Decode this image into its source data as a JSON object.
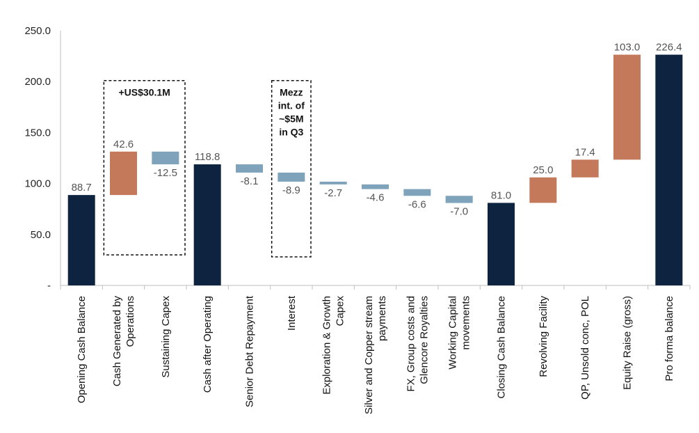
{
  "chart_data": {
    "type": "bar",
    "subtype": "waterfall",
    "title": "",
    "xlabel": "",
    "ylabel": "",
    "ylim": [
      0,
      250
    ],
    "yticks": [
      0,
      50,
      100,
      150,
      200,
      250
    ],
    "ytick_labels": [
      "-",
      "50.0",
      "100.0",
      "150.0",
      "200.0",
      "250.0"
    ],
    "grid": false,
    "legend": "none",
    "categories": [
      "Opening Cash Balance",
      "Cash Generated by Operations",
      "Sustaining Capex",
      "Cash after Operating",
      "Senior Debt Repayment",
      "Interest",
      "Exploration & Growth Capex",
      "Silver and Copper stream payments",
      "FX, Group costs and Glencore Royalties",
      "Working Capital movements",
      "Closing Cash Balance",
      "Revolving Facility",
      "QP, Unsold conc, POL",
      "Equity Raise (gross)",
      "Pro forma balance"
    ],
    "bars": [
      {
        "kind": "total",
        "value": 88.7,
        "label": "88.7",
        "base": 0,
        "top": 88.7
      },
      {
        "kind": "increase",
        "value": 42.6,
        "label": "42.6",
        "base": 88.7,
        "top": 131.3
      },
      {
        "kind": "decrease",
        "value": -12.5,
        "label": "-12.5",
        "base": 118.8,
        "top": 131.3
      },
      {
        "kind": "total",
        "value": 118.8,
        "label": "118.8",
        "base": 0,
        "top": 118.8
      },
      {
        "kind": "decrease",
        "value": -8.1,
        "label": "-8.1",
        "base": 110.7,
        "top": 118.8
      },
      {
        "kind": "decrease",
        "value": -8.9,
        "label": "-8.9",
        "base": 101.8,
        "top": 110.7
      },
      {
        "kind": "decrease",
        "value": -2.7,
        "label": "-2.7",
        "base": 99.1,
        "top": 101.8
      },
      {
        "kind": "decrease",
        "value": -4.6,
        "label": "-4.6",
        "base": 94.5,
        "top": 99.1
      },
      {
        "kind": "decrease",
        "value": -6.6,
        "label": "-6.6",
        "base": 87.9,
        "top": 94.5
      },
      {
        "kind": "decrease",
        "value": -7.0,
        "label": "-7.0",
        "base": 80.9,
        "top": 87.9
      },
      {
        "kind": "total",
        "value": 81.0,
        "label": "81.0",
        "base": 0,
        "top": 81.0
      },
      {
        "kind": "increase",
        "value": 25.0,
        "label": "25.0",
        "base": 81.0,
        "top": 106.0
      },
      {
        "kind": "increase",
        "value": 17.4,
        "label": "17.4",
        "base": 106.0,
        "top": 123.4
      },
      {
        "kind": "increase",
        "value": 103.0,
        "label": "103.0",
        "base": 123.4,
        "top": 226.4
      },
      {
        "kind": "total",
        "value": 226.4,
        "label": "226.4",
        "base": 0,
        "top": 226.4
      }
    ],
    "colors": {
      "total": "#0d2340",
      "increase": "#c47a5a",
      "decrease": "#7ea3ba"
    },
    "annotations": [
      {
        "text": [
          "+US$30.1M"
        ],
        "from_index": 1,
        "to_index": 2,
        "y_range": [
          30,
          201
        ]
      },
      {
        "text": [
          "Mezz",
          "int. of",
          "~$5M",
          "in Q3"
        ],
        "from_index": 5,
        "to_index": 5,
        "y_range": [
          28,
          201
        ]
      }
    ]
  }
}
